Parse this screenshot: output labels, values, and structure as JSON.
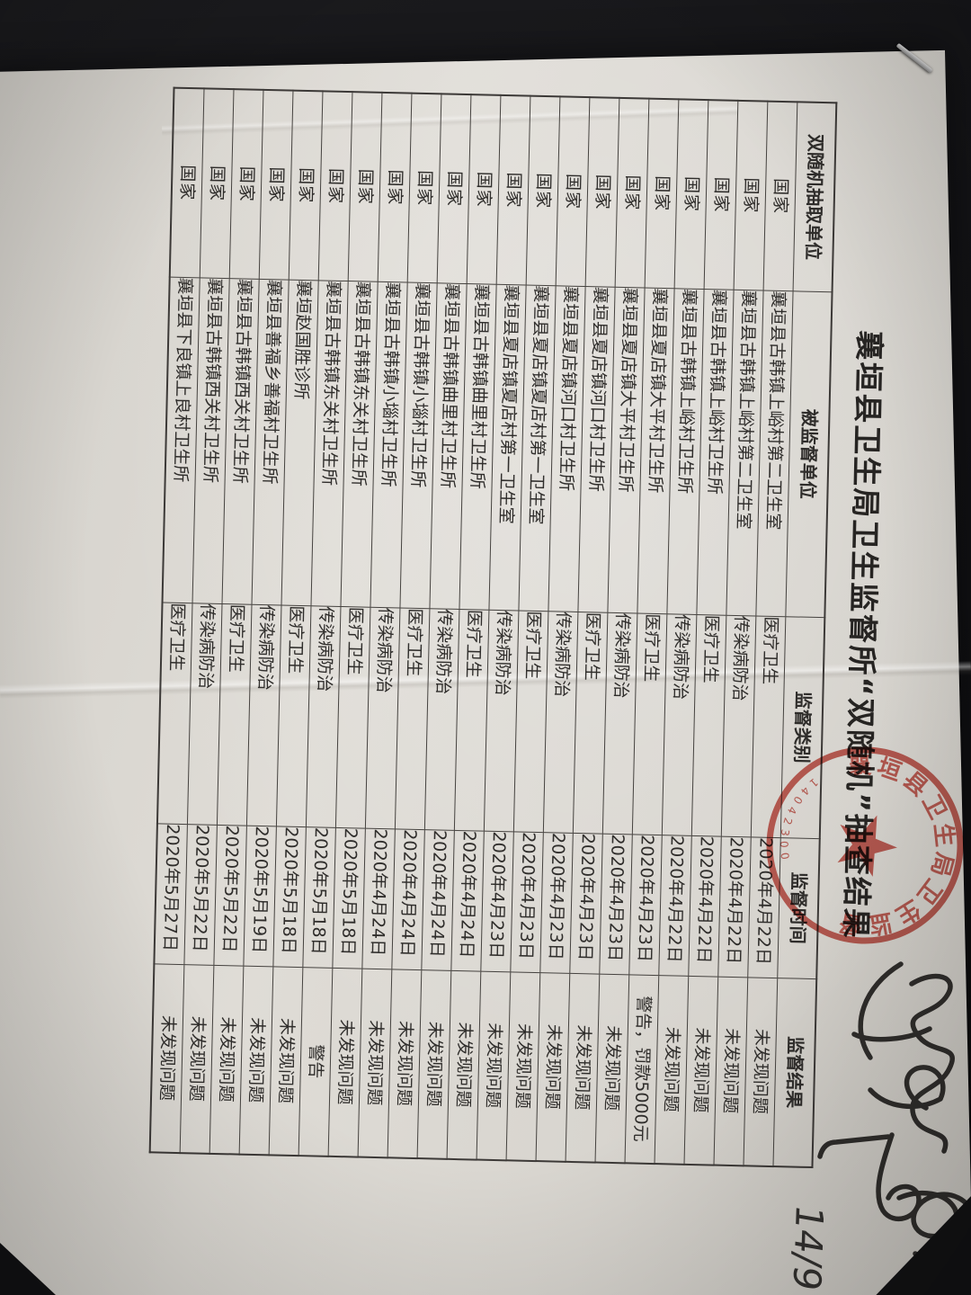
{
  "photo": {
    "background_color": "#141416",
    "paper_color": "#dbd8d2",
    "ink_color": "#2f2d2b",
    "seal_color": "#c64238",
    "handwritten_page_note": "14/9"
  },
  "document": {
    "title": "襄垣县卫生局卫生监督所“双随机”抽查结果",
    "columns": [
      "双随机抽取单位",
      "被监督单位",
      "监督类别",
      "监督时间",
      "监督结果"
    ],
    "rows": [
      [
        "国家",
        "襄垣县古韩镇上峪村第二卫生室",
        "医疗卫生",
        "2020年4月22日",
        "未发现问题"
      ],
      [
        "国家",
        "襄垣县古韩镇上峪村第二卫生室",
        "传染病防治",
        "2020年4月22日",
        "未发现问题"
      ],
      [
        "国家",
        "襄垣县古韩镇上峪村卫生所",
        "医疗卫生",
        "2020年4月22日",
        "未发现问题"
      ],
      [
        "国家",
        "襄垣县古韩镇上峪村卫生所",
        "传染病防治",
        "2020年4月22日",
        "未发现问题"
      ],
      [
        "国家",
        "襄垣县夏店镇大平村卫生所",
        "医疗卫生",
        "2020年4月23日",
        "警告，罚款5000元"
      ],
      [
        "国家",
        "襄垣县夏店镇大平村卫生所",
        "传染病防治",
        "2020年4月23日",
        "未发现问题"
      ],
      [
        "国家",
        "襄垣县夏店镇河口村卫生所",
        "医疗卫生",
        "2020年4月23日",
        "未发现问题"
      ],
      [
        "国家",
        "襄垣县夏店镇河口村卫生所",
        "传染病防治",
        "2020年4月23日",
        "未发现问题"
      ],
      [
        "国家",
        "襄垣县夏店镇夏店村第一卫生室",
        "医疗卫生",
        "2020年4月23日",
        "未发现问题"
      ],
      [
        "国家",
        "襄垣县夏店镇夏店村第一卫生室",
        "传染病防治",
        "2020年4月23日",
        "未发现问题"
      ],
      [
        "国家",
        "襄垣县古韩镇曲里村卫生所",
        "医疗卫生",
        "2020年4月24日",
        "未发现问题"
      ],
      [
        "国家",
        "襄垣县古韩镇曲里村卫生所",
        "传染病防治",
        "2020年4月24日",
        "未发现问题"
      ],
      [
        "国家",
        "襄垣县古韩镇小堖村卫生所",
        "医疗卫生",
        "2020年4月24日",
        "未发现问题"
      ],
      [
        "国家",
        "襄垣县古韩镇小堖村卫生所",
        "传染病防治",
        "2020年4月24日",
        "未发现问题"
      ],
      [
        "国家",
        "襄垣县古韩镇东关村卫生所",
        "医疗卫生",
        "2020年5月18日",
        "未发现问题"
      ],
      [
        "国家",
        "襄垣县古韩镇东关村卫生所",
        "传染病防治",
        "2020年5月18日",
        "警告"
      ],
      [
        "国家",
        "襄垣赵国胜诊所",
        "医疗卫生",
        "2020年5月18日",
        "未发现问题"
      ],
      [
        "国家",
        "襄垣县善福乡善福村卫生所",
        "传染病防治",
        "2020年5月19日",
        "未发现问题"
      ],
      [
        "国家",
        "襄垣县古韩镇西关村卫生所",
        "医疗卫生",
        "2020年5月22日",
        "未发现问题"
      ],
      [
        "国家",
        "襄垣县古韩镇西关村卫生所",
        "传染病防治",
        "2020年5月22日",
        "未发现问题"
      ],
      [
        "国家",
        "襄垣县下良镇上良村卫生所",
        "医疗卫生",
        "2020年5月27日",
        "未发现问题"
      ]
    ],
    "seal": {
      "ring_text": "襄垣县卫生局卫生监督所",
      "code_digits": "14042300"
    }
  }
}
